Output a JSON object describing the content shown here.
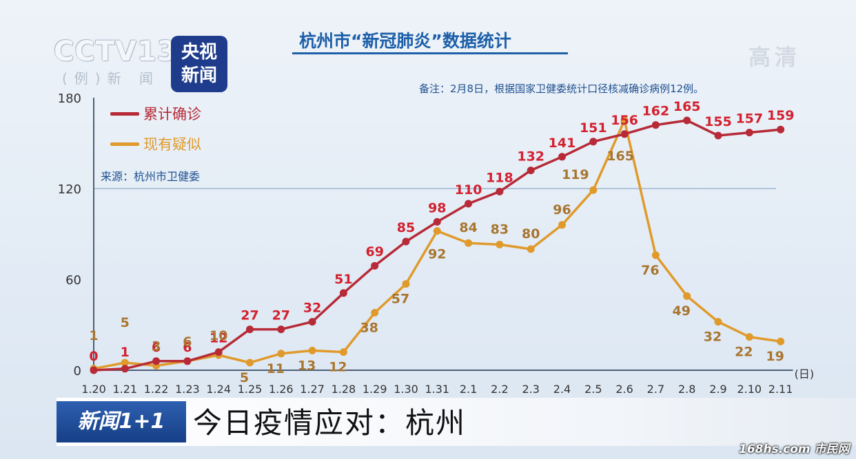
{
  "broadcast": {
    "channel_logo": "CCTV13",
    "channel_sub": "(例)新 闻",
    "news_logo_line1": "央视",
    "news_logo_line2": "新闻",
    "hd_mark": "高清",
    "program_badge": "新闻1+1",
    "headline": "今日疫情应对：杭州",
    "watermark": "168hs.com 市民网"
  },
  "colors": {
    "confirmed": "#b72a37",
    "suspected": "#e09a2b",
    "confirmed_label": "#d3202e",
    "suspected_label": "#a8752f",
    "axis": "#4d5e73",
    "gridline": "#7d9cbf"
  },
  "chart_data": {
    "type": "line",
    "title": "杭州市“新冠肺炎”数据统计",
    "note": "备注：2月8日，根据国家卫健委统计口径核减确诊病例12例。",
    "source": "来源：杭州市卫健委",
    "x_unit": "(日)",
    "categories": [
      "1.20",
      "1.21",
      "1.22",
      "1.23",
      "1.24",
      "1.25",
      "1.26",
      "1.27",
      "1.28",
      "1.29",
      "1.30",
      "1.31",
      "2.1",
      "2.2",
      "2.3",
      "2.4",
      "2.5",
      "2.6",
      "2.7",
      "2.8",
      "2.9",
      "2.10",
      "2.11"
    ],
    "ylim": [
      0,
      180
    ],
    "yticks": [
      0,
      60,
      120,
      180
    ],
    "grid": "y=120 only",
    "legend_position": "top-left",
    "series": [
      {
        "name": "累计确诊",
        "values": [
          0,
          1,
          6,
          6,
          12,
          27,
          27,
          32,
          51,
          69,
          85,
          98,
          110,
          118,
          132,
          141,
          151,
          156,
          162,
          165,
          155,
          157,
          159
        ]
      },
      {
        "name": "现有疑似",
        "values": [
          1,
          5,
          3,
          6,
          10,
          5,
          11,
          13,
          12,
          38,
          57,
          92,
          84,
          83,
          80,
          96,
          119,
          165,
          76,
          49,
          32,
          22,
          19
        ]
      }
    ]
  }
}
